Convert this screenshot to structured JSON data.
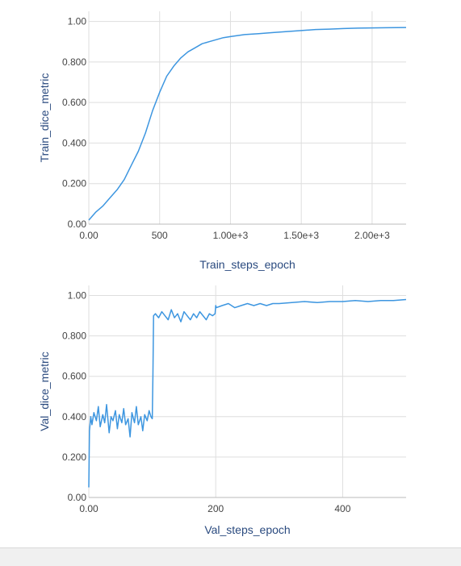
{
  "colors": {
    "line": "#3d96e0",
    "grid": "#dedede",
    "axis": "#444444",
    "axis_title": "#2a4a7f"
  },
  "chart_data": [
    {
      "type": "line",
      "title": "",
      "xlabel": "Train_steps_epoch",
      "ylabel": "Train_dice_metric",
      "xlim": [
        0,
        2240
      ],
      "ylim": [
        0,
        1.05
      ],
      "x_ticks": [
        0,
        500,
        1000,
        1500,
        2000
      ],
      "x_tick_labels": [
        "0.00",
        "500",
        "1.00e+3",
        "1.50e+3",
        "2.00e+3"
      ],
      "y_ticks": [
        0,
        0.2,
        0.4,
        0.6,
        0.8,
        1.0
      ],
      "y_tick_labels": [
        "0.00",
        "0.200",
        "0.400",
        "0.600",
        "0.800",
        "1.00"
      ],
      "grid": true,
      "series": [
        {
          "x": [
            0,
            50,
            100,
            150,
            200,
            250,
            300,
            350,
            400,
            450,
            500,
            550,
            600,
            650,
            700,
            750,
            800,
            850,
            900,
            950,
            1000,
            1100,
            1200,
            1300,
            1400,
            1500,
            1600,
            1700,
            1800,
            1900,
            2000,
            2100,
            2240
          ],
          "y": [
            0.02,
            0.06,
            0.09,
            0.13,
            0.17,
            0.22,
            0.29,
            0.36,
            0.45,
            0.56,
            0.65,
            0.73,
            0.78,
            0.82,
            0.85,
            0.87,
            0.89,
            0.9,
            0.91,
            0.92,
            0.925,
            0.935,
            0.94,
            0.945,
            0.95,
            0.955,
            0.96,
            0.962,
            0.965,
            0.967,
            0.968,
            0.969,
            0.97
          ]
        }
      ]
    },
    {
      "type": "line",
      "title": "",
      "xlabel": "Val_steps_epoch",
      "ylabel": "Val_dice_metric",
      "xlim": [
        0,
        500
      ],
      "ylim": [
        0,
        1.05
      ],
      "x_ticks": [
        0,
        200,
        400
      ],
      "x_tick_labels": [
        "0.00",
        "200",
        "400"
      ],
      "y_ticks": [
        0,
        0.2,
        0.4,
        0.6,
        0.8,
        1.0
      ],
      "y_tick_labels": [
        "0.00",
        "0.200",
        "0.400",
        "0.600",
        "0.800",
        "1.00"
      ],
      "grid": true,
      "series": [
        {
          "x": [
            0,
            1,
            3,
            5,
            8,
            12,
            15,
            18,
            22,
            25,
            28,
            32,
            35,
            38,
            42,
            45,
            48,
            52,
            55,
            58,
            62,
            65,
            68,
            72,
            75,
            78,
            82,
            85,
            88,
            92,
            95,
            98,
            100,
            101,
            102,
            105,
            110,
            115,
            120,
            125,
            130,
            135,
            140,
            145,
            150,
            155,
            160,
            165,
            170,
            175,
            180,
            185,
            190,
            195,
            199,
            200,
            201,
            210,
            220,
            230,
            240,
            250,
            260,
            270,
            280,
            290,
            300,
            320,
            340,
            360,
            380,
            400,
            420,
            440,
            460,
            480,
            500
          ],
          "y": [
            0.05,
            0.33,
            0.4,
            0.36,
            0.42,
            0.38,
            0.45,
            0.35,
            0.41,
            0.37,
            0.46,
            0.32,
            0.4,
            0.38,
            0.43,
            0.34,
            0.41,
            0.37,
            0.44,
            0.36,
            0.39,
            0.3,
            0.42,
            0.37,
            0.45,
            0.36,
            0.4,
            0.33,
            0.41,
            0.38,
            0.43,
            0.4,
            0.39,
            0.6,
            0.9,
            0.91,
            0.89,
            0.92,
            0.9,
            0.88,
            0.93,
            0.89,
            0.91,
            0.87,
            0.92,
            0.9,
            0.88,
            0.91,
            0.89,
            0.92,
            0.9,
            0.88,
            0.91,
            0.9,
            0.91,
            0.95,
            0.94,
            0.95,
            0.96,
            0.94,
            0.95,
            0.96,
            0.95,
            0.96,
            0.95,
            0.96,
            0.96,
            0.965,
            0.97,
            0.965,
            0.97,
            0.97,
            0.975,
            0.97,
            0.975,
            0.975,
            0.98
          ]
        }
      ]
    }
  ]
}
